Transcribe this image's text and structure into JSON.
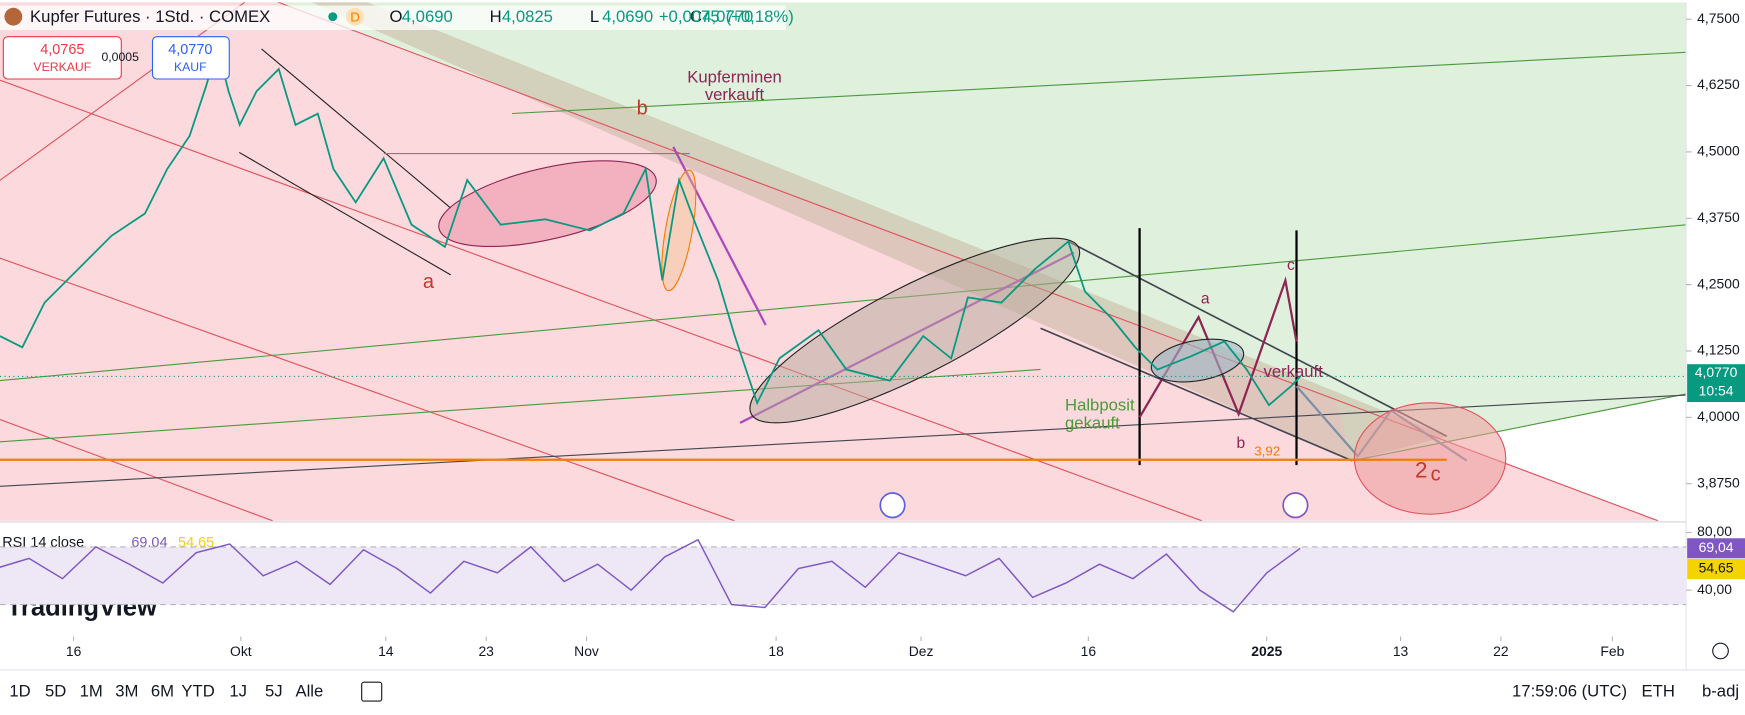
{
  "header": {
    "title": "Kupfer Futures · 1Std. · COMEX",
    "badge": "D",
    "ohlc": [
      {
        "key": "O",
        "value": 4.069,
        "label": "4,0690"
      },
      {
        "key": "H",
        "value": 4.0825,
        "label": "4,0825"
      },
      {
        "key": "L",
        "value": 4.069,
        "label": "4,0690"
      },
      {
        "key": "C",
        "value": 4.077,
        "label": "4,0770"
      }
    ],
    "change": {
      "value": 0.0075,
      "label": "+0,0075"
    },
    "change_pct": {
      "value": 0.18,
      "label": "(+0,18%)"
    },
    "sell": {
      "value": 4.0765,
      "label": "4,0765",
      "caption": "VERKAUF"
    },
    "spread": {
      "value": 0.0005,
      "label": "0,0005"
    },
    "buy": {
      "value": 4.077,
      "label": "4,0770",
      "caption": "KAUF"
    }
  },
  "chart_data": {
    "type": "line",
    "xlim": [
      9.4,
      160.6
    ],
    "xticks": [
      {
        "value": 16,
        "label": "16"
      },
      {
        "value": 31,
        "label": "Okt"
      },
      {
        "value": 44,
        "label": "14"
      },
      {
        "value": 53,
        "label": "23"
      },
      {
        "value": 62,
        "label": "Nov"
      },
      {
        "value": 79,
        "label": "18"
      },
      {
        "value": 92,
        "label": "Dez"
      },
      {
        "value": 107,
        "label": "16"
      },
      {
        "value": 123,
        "label": "2025"
      },
      {
        "value": 135,
        "label": "13"
      },
      {
        "value": 144,
        "label": "22"
      },
      {
        "value": 154,
        "label": "Feb"
      }
    ],
    "ylim": [
      3.805,
      4.782
    ],
    "yticks": [
      {
        "value": 3.875,
        "label": "3,8750"
      },
      {
        "value": 4.0,
        "label": "4,0000"
      },
      {
        "value": 4.125,
        "label": "4,1250"
      },
      {
        "value": 4.25,
        "label": "4,2500"
      },
      {
        "value": 4.375,
        "label": "4,3750"
      },
      {
        "value": 4.5,
        "label": "4,5000"
      },
      {
        "value": 4.625,
        "label": "4,6250"
      },
      {
        "value": 4.75,
        "label": "4,7500"
      }
    ],
    "series": [
      {
        "name": "Kupfer Futures",
        "color": "#089981",
        "x": [
          9.4,
          11.4,
          13.4,
          16.4,
          19.4,
          22.4,
          24.4,
          26.4,
          27.9,
          28.9,
          29.9,
          30.9,
          32.4,
          34.4,
          35.9,
          37.9,
          39.3,
          41.3,
          43.8,
          46.3,
          49.3,
          51.3,
          54.3,
          58.3,
          62.3,
          65.3,
          67.3,
          68.8,
          70.3,
          71.8,
          73.8,
          75.3,
          77.3,
          79.3,
          82.8,
          85.3,
          89.2,
          92.2,
          94.7,
          96.2,
          99.2,
          102.2,
          105.2,
          106.7,
          109.2,
          111.2,
          113.2,
          116.2,
          119.2,
          121.2,
          123.2,
          125.2,
          126.0
        ],
        "values": [
          4.153,
          4.132,
          4.216,
          4.279,
          4.342,
          4.384,
          4.468,
          4.53,
          4.625,
          4.698,
          4.614,
          4.551,
          4.614,
          4.656,
          4.551,
          4.572,
          4.468,
          4.405,
          4.488,
          4.363,
          4.321,
          4.447,
          4.363,
          4.373,
          4.352,
          4.384,
          4.468,
          4.258,
          4.447,
          4.363,
          4.258,
          4.153,
          4.027,
          4.111,
          4.164,
          4.09,
          4.069,
          4.153,
          4.111,
          4.226,
          4.216,
          4.279,
          4.331,
          4.237,
          4.184,
          4.132,
          4.09,
          4.115,
          4.143,
          4.09,
          4.023,
          4.059,
          4.077
        ]
      }
    ],
    "last_price": {
      "value": 4.077,
      "label": "4,0770",
      "countdown": "10:54"
    },
    "level": {
      "value": 3.92,
      "label": "3,92",
      "color": "#f57c00"
    },
    "annotations": [
      "Kupferminen",
      "verkauft",
      "b",
      "a",
      "a",
      "c",
      "verkauft",
      "Halbposit",
      "gekauft",
      "b",
      "2",
      "c"
    ]
  },
  "rsi": {
    "type": "line",
    "label": "RSI 14 close",
    "color": "#7e57c2",
    "ylim": [
      14,
      85
    ],
    "yticks": [
      {
        "value": 80,
        "label": "80,00"
      },
      {
        "value": 40,
        "label": "40,00"
      }
    ],
    "bands": [
      70,
      30
    ],
    "x": [
      9,
      12,
      15,
      18,
      21,
      24,
      27,
      30,
      33,
      36,
      39,
      42,
      45,
      48,
      51,
      54,
      57,
      60,
      63,
      66,
      69,
      72,
      75,
      78,
      81,
      84,
      87,
      90,
      93,
      96,
      99,
      102,
      105,
      108,
      111,
      114,
      117,
      120,
      123,
      126
    ],
    "values": [
      55,
      62,
      48,
      70,
      58,
      45,
      66,
      72,
      50,
      60,
      44,
      68,
      55,
      38,
      60,
      52,
      70,
      46,
      58,
      40,
      63,
      75,
      30,
      28,
      55,
      60,
      42,
      66,
      58,
      50,
      62,
      35,
      45,
      58,
      48,
      65,
      40,
      25,
      52,
      69.04
    ],
    "last": {
      "value": 69.04,
      "label": "69,04"
    },
    "ma_last": {
      "value": 54.65,
      "label": "54,65",
      "color": "#f5d300"
    }
  },
  "logo": "TradingView",
  "toolbar": {
    "ranges": [
      "1D",
      "5D",
      "1M",
      "3M",
      "6M",
      "YTD",
      "1J",
      "5J",
      "Alle"
    ],
    "clock": "17:59:06 (UTC)",
    "session": "ETH",
    "adjust": "b-adj"
  }
}
